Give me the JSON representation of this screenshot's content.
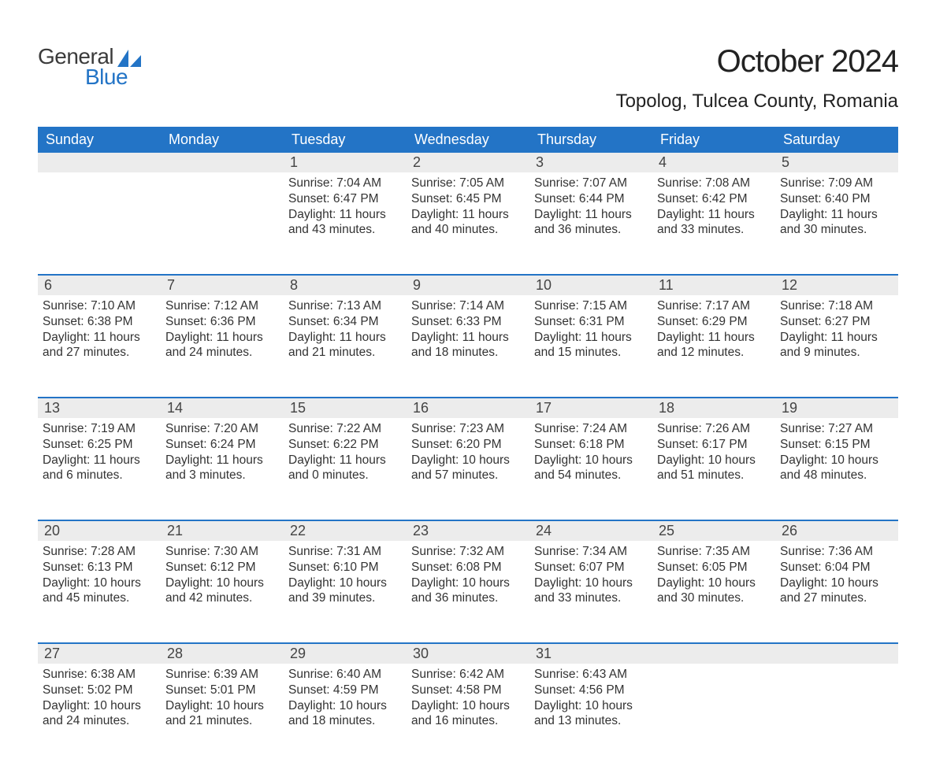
{
  "brand": {
    "top": "General",
    "bottom": "Blue",
    "top_color": "#3b3b3b",
    "bottom_color": "#2374c6",
    "icon_color": "#2374c6"
  },
  "title": "October 2024",
  "location": "Topolog, Tulcea County, Romania",
  "colors": {
    "header_bg": "#2374c6",
    "header_text": "#ffffff",
    "daynum_bg": "#ececec",
    "row_divider": "#2374c6",
    "body_text": "#333333",
    "page_bg": "#ffffff"
  },
  "typography": {
    "title_fontsize": 40,
    "location_fontsize": 24,
    "weekday_fontsize": 18,
    "daynum_fontsize": 18,
    "body_fontsize": 15.5,
    "font_family": "Arial"
  },
  "weekdays": [
    "Sunday",
    "Monday",
    "Tuesday",
    "Wednesday",
    "Thursday",
    "Friday",
    "Saturday"
  ],
  "weeks": [
    [
      null,
      null,
      {
        "n": "1",
        "sunrise": "Sunrise: 7:04 AM",
        "sunset": "Sunset: 6:47 PM",
        "d1": "Daylight: 11 hours",
        "d2": "and 43 minutes."
      },
      {
        "n": "2",
        "sunrise": "Sunrise: 7:05 AM",
        "sunset": "Sunset: 6:45 PM",
        "d1": "Daylight: 11 hours",
        "d2": "and 40 minutes."
      },
      {
        "n": "3",
        "sunrise": "Sunrise: 7:07 AM",
        "sunset": "Sunset: 6:44 PM",
        "d1": "Daylight: 11 hours",
        "d2": "and 36 minutes."
      },
      {
        "n": "4",
        "sunrise": "Sunrise: 7:08 AM",
        "sunset": "Sunset: 6:42 PM",
        "d1": "Daylight: 11 hours",
        "d2": "and 33 minutes."
      },
      {
        "n": "5",
        "sunrise": "Sunrise: 7:09 AM",
        "sunset": "Sunset: 6:40 PM",
        "d1": "Daylight: 11 hours",
        "d2": "and 30 minutes."
      }
    ],
    [
      {
        "n": "6",
        "sunrise": "Sunrise: 7:10 AM",
        "sunset": "Sunset: 6:38 PM",
        "d1": "Daylight: 11 hours",
        "d2": "and 27 minutes."
      },
      {
        "n": "7",
        "sunrise": "Sunrise: 7:12 AM",
        "sunset": "Sunset: 6:36 PM",
        "d1": "Daylight: 11 hours",
        "d2": "and 24 minutes."
      },
      {
        "n": "8",
        "sunrise": "Sunrise: 7:13 AM",
        "sunset": "Sunset: 6:34 PM",
        "d1": "Daylight: 11 hours",
        "d2": "and 21 minutes."
      },
      {
        "n": "9",
        "sunrise": "Sunrise: 7:14 AM",
        "sunset": "Sunset: 6:33 PM",
        "d1": "Daylight: 11 hours",
        "d2": "and 18 minutes."
      },
      {
        "n": "10",
        "sunrise": "Sunrise: 7:15 AM",
        "sunset": "Sunset: 6:31 PM",
        "d1": "Daylight: 11 hours",
        "d2": "and 15 minutes."
      },
      {
        "n": "11",
        "sunrise": "Sunrise: 7:17 AM",
        "sunset": "Sunset: 6:29 PM",
        "d1": "Daylight: 11 hours",
        "d2": "and 12 minutes."
      },
      {
        "n": "12",
        "sunrise": "Sunrise: 7:18 AM",
        "sunset": "Sunset: 6:27 PM",
        "d1": "Daylight: 11 hours",
        "d2": "and 9 minutes."
      }
    ],
    [
      {
        "n": "13",
        "sunrise": "Sunrise: 7:19 AM",
        "sunset": "Sunset: 6:25 PM",
        "d1": "Daylight: 11 hours",
        "d2": "and 6 minutes."
      },
      {
        "n": "14",
        "sunrise": "Sunrise: 7:20 AM",
        "sunset": "Sunset: 6:24 PM",
        "d1": "Daylight: 11 hours",
        "d2": "and 3 minutes."
      },
      {
        "n": "15",
        "sunrise": "Sunrise: 7:22 AM",
        "sunset": "Sunset: 6:22 PM",
        "d1": "Daylight: 11 hours",
        "d2": "and 0 minutes."
      },
      {
        "n": "16",
        "sunrise": "Sunrise: 7:23 AM",
        "sunset": "Sunset: 6:20 PM",
        "d1": "Daylight: 10 hours",
        "d2": "and 57 minutes."
      },
      {
        "n": "17",
        "sunrise": "Sunrise: 7:24 AM",
        "sunset": "Sunset: 6:18 PM",
        "d1": "Daylight: 10 hours",
        "d2": "and 54 minutes."
      },
      {
        "n": "18",
        "sunrise": "Sunrise: 7:26 AM",
        "sunset": "Sunset: 6:17 PM",
        "d1": "Daylight: 10 hours",
        "d2": "and 51 minutes."
      },
      {
        "n": "19",
        "sunrise": "Sunrise: 7:27 AM",
        "sunset": "Sunset: 6:15 PM",
        "d1": "Daylight: 10 hours",
        "d2": "and 48 minutes."
      }
    ],
    [
      {
        "n": "20",
        "sunrise": "Sunrise: 7:28 AM",
        "sunset": "Sunset: 6:13 PM",
        "d1": "Daylight: 10 hours",
        "d2": "and 45 minutes."
      },
      {
        "n": "21",
        "sunrise": "Sunrise: 7:30 AM",
        "sunset": "Sunset: 6:12 PM",
        "d1": "Daylight: 10 hours",
        "d2": "and 42 minutes."
      },
      {
        "n": "22",
        "sunrise": "Sunrise: 7:31 AM",
        "sunset": "Sunset: 6:10 PM",
        "d1": "Daylight: 10 hours",
        "d2": "and 39 minutes."
      },
      {
        "n": "23",
        "sunrise": "Sunrise: 7:32 AM",
        "sunset": "Sunset: 6:08 PM",
        "d1": "Daylight: 10 hours",
        "d2": "and 36 minutes."
      },
      {
        "n": "24",
        "sunrise": "Sunrise: 7:34 AM",
        "sunset": "Sunset: 6:07 PM",
        "d1": "Daylight: 10 hours",
        "d2": "and 33 minutes."
      },
      {
        "n": "25",
        "sunrise": "Sunrise: 7:35 AM",
        "sunset": "Sunset: 6:05 PM",
        "d1": "Daylight: 10 hours",
        "d2": "and 30 minutes."
      },
      {
        "n": "26",
        "sunrise": "Sunrise: 7:36 AM",
        "sunset": "Sunset: 6:04 PM",
        "d1": "Daylight: 10 hours",
        "d2": "and 27 minutes."
      }
    ],
    [
      {
        "n": "27",
        "sunrise": "Sunrise: 6:38 AM",
        "sunset": "Sunset: 5:02 PM",
        "d1": "Daylight: 10 hours",
        "d2": "and 24 minutes."
      },
      {
        "n": "28",
        "sunrise": "Sunrise: 6:39 AM",
        "sunset": "Sunset: 5:01 PM",
        "d1": "Daylight: 10 hours",
        "d2": "and 21 minutes."
      },
      {
        "n": "29",
        "sunrise": "Sunrise: 6:40 AM",
        "sunset": "Sunset: 4:59 PM",
        "d1": "Daylight: 10 hours",
        "d2": "and 18 minutes."
      },
      {
        "n": "30",
        "sunrise": "Sunrise: 6:42 AM",
        "sunset": "Sunset: 4:58 PM",
        "d1": "Daylight: 10 hours",
        "d2": "and 16 minutes."
      },
      {
        "n": "31",
        "sunrise": "Sunrise: 6:43 AM",
        "sunset": "Sunset: 4:56 PM",
        "d1": "Daylight: 10 hours",
        "d2": "and 13 minutes."
      },
      null,
      null
    ]
  ]
}
